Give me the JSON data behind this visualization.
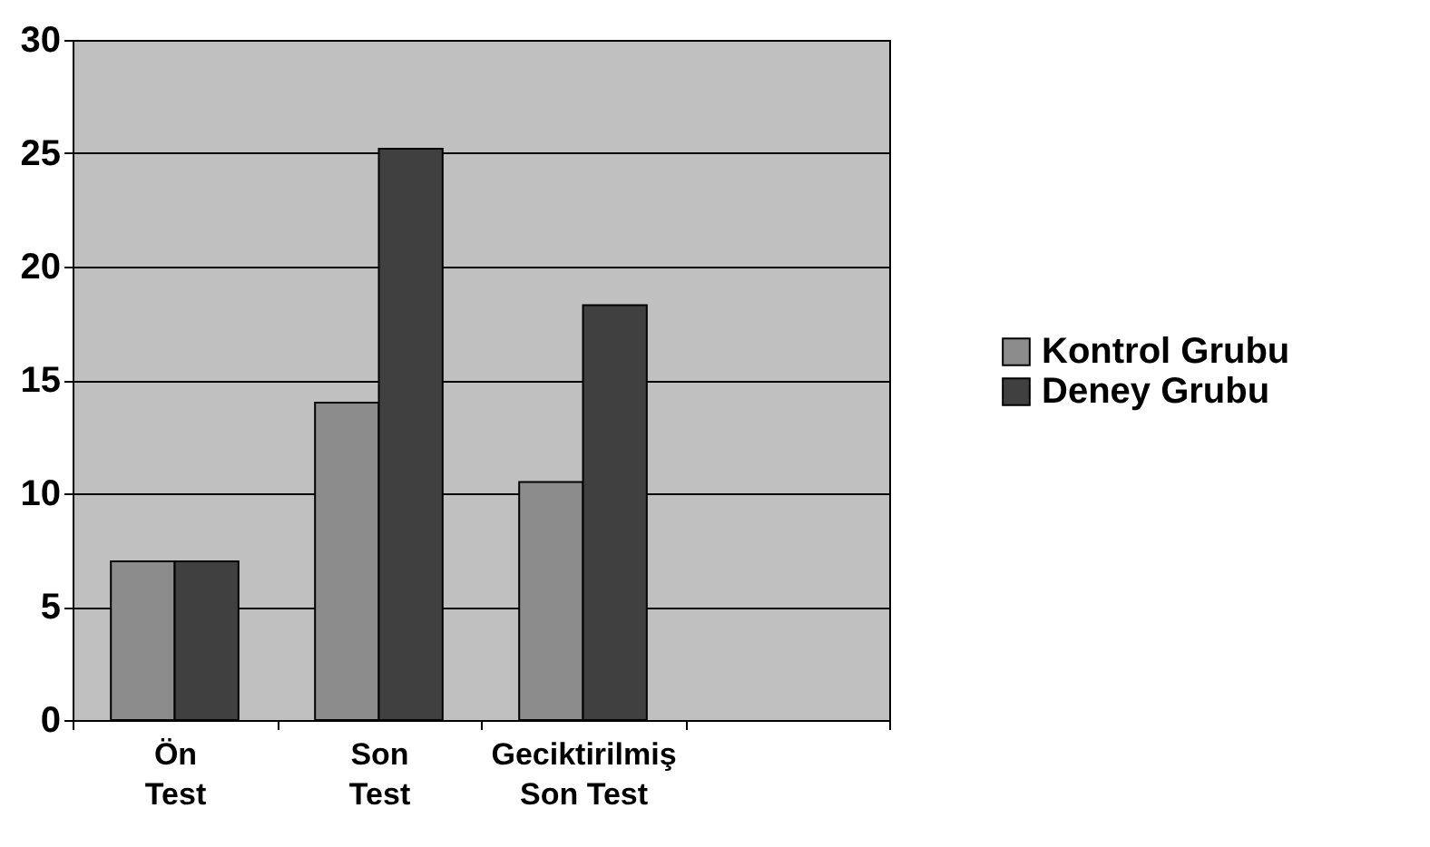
{
  "chart_data": {
    "type": "bar",
    "categories": [
      "Ön Test",
      "Son Test",
      "Geciktirilmiş Son Test",
      null
    ],
    "series": [
      {
        "name": "Kontrol Grubu",
        "color": "#8c8c8c",
        "values": [
          7,
          14,
          10.5,
          null
        ]
      },
      {
        "name": "Deney Grubu",
        "color": "#404040",
        "values": [
          7,
          25.2,
          18.3,
          null
        ]
      }
    ],
    "ylim": [
      0,
      30
    ],
    "yticks": [
      0,
      5,
      10,
      15,
      20,
      25,
      30
    ],
    "grid": "y",
    "legend": "right"
  }
}
